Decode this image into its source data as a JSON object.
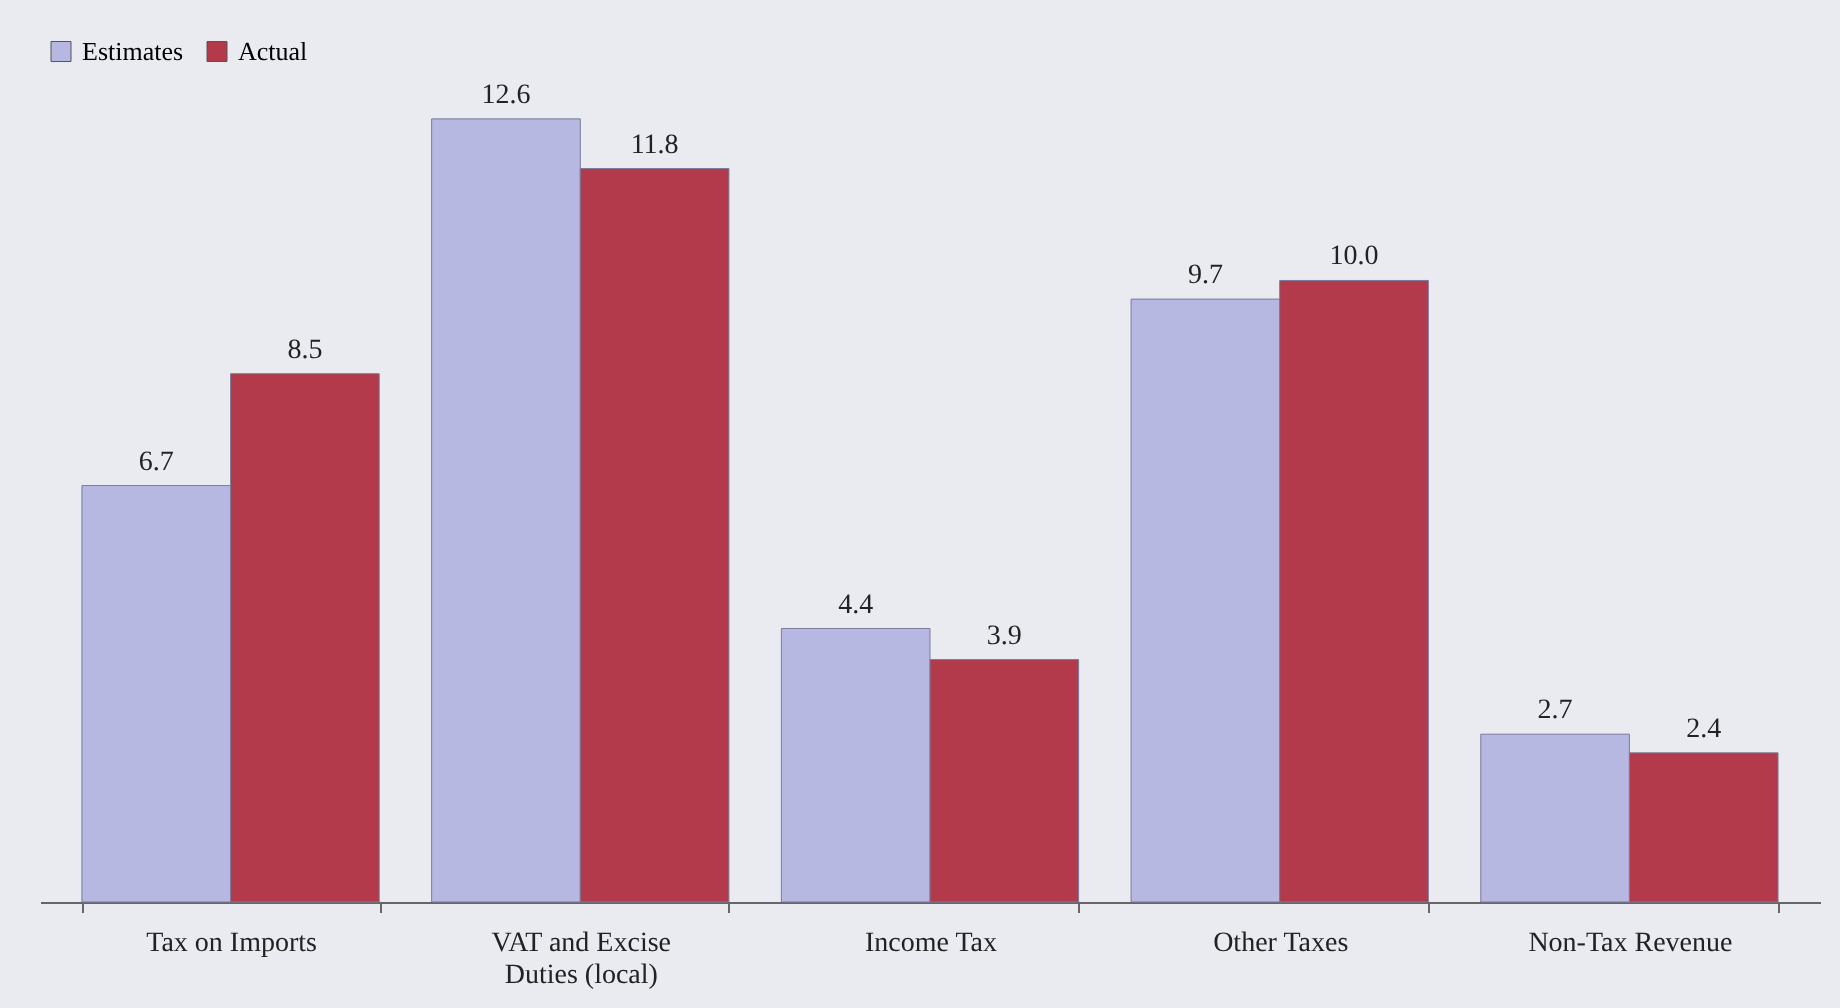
{
  "chart_data": {
    "type": "bar",
    "categories": [
      "Tax on Imports",
      "VAT and Excise Duties (local)",
      "Income Tax",
      "Other Taxes",
      "Non-Tax Revenue"
    ],
    "series": [
      {
        "name": "Estimates",
        "color": "#b6b8e2",
        "values": [
          6.7,
          12.6,
          4.4,
          9.7,
          2.7
        ],
        "value_labels": [
          "6.7",
          "12.6",
          "4.4",
          "9.7",
          "2.7"
        ]
      },
      {
        "name": "Actual",
        "color": "#b23a4a",
        "values": [
          8.5,
          11.8,
          3.9,
          10.0,
          2.4
        ],
        "value_labels": [
          "8.5",
          "11.8",
          "3.9",
          "10.0",
          "2.4"
        ]
      }
    ],
    "legend": "top",
    "grid": false
  }
}
